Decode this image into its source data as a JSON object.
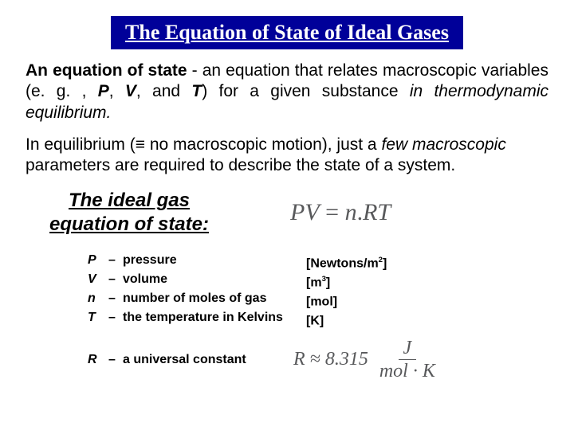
{
  "colors": {
    "title_bg": "#000099",
    "title_fg": "#ffffff",
    "body_fg": "#000000",
    "equation_fg": "#58595b",
    "page_bg": "#ffffff"
  },
  "fonts": {
    "title_family": "Times New Roman",
    "title_size_pt": 26,
    "body_family": "Arial",
    "body_size_pt": 21,
    "ideal_label_size_pt": 24,
    "def_size_pt": 16,
    "eq_size_pt": 30
  },
  "title": "The Equation of State of Ideal Gases",
  "para1_strong": "An equation of state",
  "para1_mid": " - an equation that relates macroscopic variables (e. g. , ",
  "para1_P": "P",
  "para1_c1": ", ",
  "para1_V": "V",
  "para1_c2": ", and ",
  "para1_T": "T",
  "para1_tail1": ") for a given substance ",
  "para1_tail2": "in thermodynamic equilibrium.",
  "para2_a": "In equilibrium (",
  "para2_sym": "≡",
  "para2_b": " no macroscopic motion), just a ",
  "para2_few": "few macroscopic",
  "para2_c": " parameters are required to describe the state of a system.",
  "ideal_line1": "The ideal gas",
  "ideal_line2": "equation of state:",
  "eq_lhs": "PV",
  "eq_eq": " = ",
  "eq_rhs_a": "n",
  "eq_rhs_dot": ".",
  "eq_rhs_b": "RT",
  "defs": [
    {
      "sym": "P",
      "dash": "–",
      "desc": "pressure",
      "unit_pre": "[Newtons/m",
      "unit_sup": "2",
      "unit_post": "]"
    },
    {
      "sym": "V",
      "dash": "–",
      "desc": "volume",
      "unit_pre": "[m",
      "unit_sup": "3",
      "unit_post": "]"
    },
    {
      "sym": "n",
      "dash": "–",
      "desc": "number of moles of gas",
      "unit_pre": "[mol",
      "unit_sup": "",
      "unit_post": "]"
    },
    {
      "sym": "T",
      "dash": "–",
      "desc": "the temperature in Kelvins",
      "unit_pre": "[K",
      "unit_sup": "",
      "unit_post": "]"
    }
  ],
  "r_sym": "R",
  "r_dash": "–",
  "r_desc": "a universal constant",
  "r_eq_lhs": "R ≈ 8.315",
  "r_eq_num": "J",
  "r_eq_den": "mol · K"
}
